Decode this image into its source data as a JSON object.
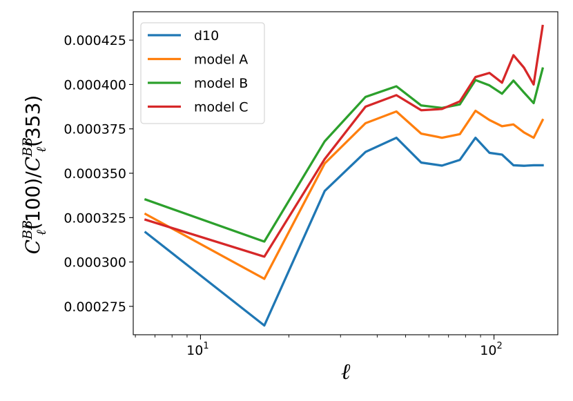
{
  "chart_data": {
    "type": "line",
    "xscale": "log",
    "xlim": [
      5.9,
      165
    ],
    "ylim": [
      0.000259,
      0.000441
    ],
    "xlabel": "ℓ",
    "ylabel": {
      "prefix": "C",
      "sup1": "BB",
      "sub1": "ℓ",
      "mid": "(100)/",
      "prefix2": "C",
      "sup2": "BB",
      "sub2": "ℓ",
      "suffix": "(353)"
    },
    "yticks": [
      0.000275,
      0.0003,
      0.000325,
      0.00035,
      0.000375,
      0.0004,
      0.000425
    ],
    "ytick_labels": [
      "0.000275",
      "0.000300",
      "0.000325",
      "0.000350",
      "0.000375",
      "0.000400",
      "0.000425"
    ],
    "xticks_major": [
      10,
      100
    ],
    "xtick_labels": [
      {
        "base": "10",
        "exp": "1"
      },
      {
        "base": "10",
        "exp": "2"
      }
    ],
    "x": [
      6.5,
      16.5,
      26.5,
      36.5,
      46.5,
      56.5,
      66.5,
      76.5,
      86.5,
      96.5,
      106.5,
      116.5,
      126.5,
      136.5,
      146.5
    ],
    "series": [
      {
        "name": "d10",
        "color": "#1f77b4",
        "values": [
          0.0003167,
          0.0002642,
          0.00034,
          0.000362,
          0.00037,
          0.000356,
          0.0003543,
          0.0003575,
          0.00037,
          0.0003615,
          0.0003605,
          0.0003545,
          0.0003542,
          0.0003545,
          0.0003545
        ]
      },
      {
        "name": "model A",
        "color": "#ff7f0e",
        "values": [
          0.000327,
          0.0002905,
          0.0003555,
          0.0003782,
          0.0003848,
          0.0003723,
          0.00037,
          0.000372,
          0.0003852,
          0.00038,
          0.0003765,
          0.0003775,
          0.000373,
          0.00037,
          0.00038
        ]
      },
      {
        "name": "model B",
        "color": "#2ca02c",
        "values": [
          0.0003352,
          0.0003115,
          0.000368,
          0.000393,
          0.000399,
          0.0003882,
          0.0003868,
          0.0003888,
          0.0004025,
          0.0003995,
          0.0003948,
          0.0004022,
          0.0003955,
          0.0003895,
          0.000409
        ]
      },
      {
        "name": "model C",
        "color": "#d62728",
        "values": [
          0.0003238,
          0.000303,
          0.000358,
          0.0003875,
          0.000394,
          0.0003855,
          0.0003862,
          0.0003905,
          0.0004042,
          0.0004065,
          0.000401,
          0.0004165,
          0.0004095,
          0.0004,
          0.000433
        ]
      }
    ],
    "legend_position": "top-left",
    "grid": false
  }
}
